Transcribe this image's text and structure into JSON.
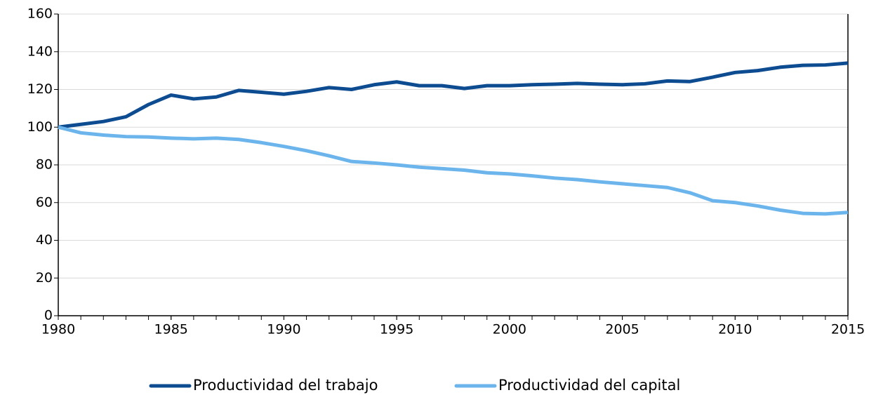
{
  "chart_data": {
    "type": "line",
    "x": [
      1980,
      1981,
      1982,
      1983,
      1984,
      1985,
      1986,
      1987,
      1988,
      1989,
      1990,
      1991,
      1992,
      1993,
      1994,
      1995,
      1996,
      1997,
      1998,
      1999,
      2000,
      2001,
      2002,
      2003,
      2004,
      2005,
      2006,
      2007,
      2008,
      2009,
      2010,
      2011,
      2012,
      2013,
      2014,
      2015
    ],
    "series": [
      {
        "name": "Productividad del trabajo",
        "color": "#0d4c91",
        "values": [
          100,
          101.5,
          103,
          105.5,
          112,
          117,
          115,
          116,
          119.5,
          118.5,
          117.5,
          119,
          121,
          120,
          122.5,
          124,
          122,
          122,
          120.5,
          122,
          122,
          122.5,
          122.8,
          123.2,
          122.8,
          122.5,
          123,
          124.5,
          124.2,
          126.5,
          129,
          130,
          131.8,
          132.8,
          133,
          134
        ]
      },
      {
        "name": "Productividad del capital",
        "color": "#6cb5ec",
        "values": [
          100,
          97,
          95.8,
          95,
          94.8,
          94.2,
          93.8,
          94.2,
          93.5,
          91.8,
          89.8,
          87.5,
          84.8,
          81.8,
          81,
          80,
          78.8,
          78,
          77.2,
          75.8,
          75.2,
          74.2,
          73,
          72.2,
          71,
          70,
          69,
          68,
          65.2,
          61,
          60,
          58.2,
          56,
          54.3,
          54,
          54.8
        ]
      }
    ],
    "xlim": [
      1980,
      2015
    ],
    "xticks": [
      1980,
      1985,
      1990,
      1995,
      2000,
      2005,
      2010,
      2015
    ],
    "ylim": [
      0,
      160
    ],
    "yticks": [
      0,
      20,
      40,
      60,
      80,
      100,
      120,
      140,
      160
    ],
    "grid": true,
    "legend": "bottom"
  }
}
